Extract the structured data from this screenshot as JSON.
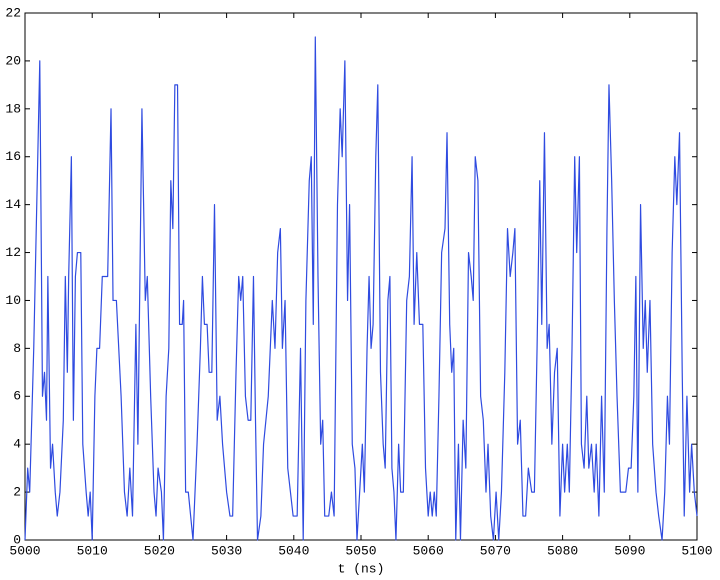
{
  "chart_data": {
    "type": "line",
    "x_label": "t (ns)",
    "x": [
      5000,
      5000.4,
      5000.7,
      5001.3,
      5002.2,
      5002.6,
      5002.9,
      5003.2,
      5003.4,
      5003.8,
      5004.1,
      5004.5,
      5004.8,
      5005.2,
      5005.7,
      5006,
      5006.3,
      5006.5,
      5006.9,
      5007.2,
      5007.5,
      5007.8,
      5008.3,
      5008.6,
      5009.1,
      5009.4,
      5009.7,
      5010,
      5010.4,
      5010.7,
      5011.1,
      5011.5,
      5012.3,
      5012.8,
      5013.1,
      5013.6,
      5014.3,
      5014.8,
      5015.2,
      5015.6,
      5016,
      5016.5,
      5016.8,
      5017.4,
      5017.9,
      5018.2,
      5018.7,
      5019.2,
      5019.5,
      5019.8,
      5020.3,
      5020.6,
      5021,
      5021.4,
      5021.7,
      5022,
      5022.3,
      5022.7,
      5023,
      5023.4,
      5023.6,
      5023.9,
      5024.3,
      5025,
      5025.6,
      5026.1,
      5026.4,
      5026.7,
      5027.1,
      5027.4,
      5027.8,
      5028.2,
      5028.6,
      5029,
      5029.4,
      5030,
      5030.5,
      5030.9,
      5031.4,
      5031.8,
      5032.1,
      5032.4,
      5032.8,
      5033.2,
      5033.6,
      5034,
      5034.3,
      5034.6,
      5035.1,
      5035.5,
      5036.2,
      5036.8,
      5037.2,
      5037.6,
      5038,
      5038.3,
      5038.7,
      5039.1,
      5039.5,
      5039.9,
      5040.5,
      5041,
      5041.4,
      5041.8,
      5042.3,
      5042.6,
      5042.9,
      5043.2,
      5043.6,
      5044,
      5044.3,
      5044.6,
      5045.2,
      5045.6,
      5046,
      5046.5,
      5046.9,
      5047.2,
      5047.6,
      5048,
      5048.3,
      5048.7,
      5049.1,
      5049.4,
      5049.8,
      5050.2,
      5050.5,
      5050.9,
      5051.2,
      5051.5,
      5051.8,
      5052.2,
      5052.5,
      5052.9,
      5053.3,
      5053.6,
      5054,
      5054.3,
      5054.6,
      5054.9,
      5055.2,
      5055.6,
      5055.9,
      5056.3,
      5056.8,
      5057.2,
      5057.6,
      5057.9,
      5058.3,
      5058.7,
      5059.2,
      5059.6,
      5060,
      5060.3,
      5060.6,
      5060.9,
      5061.2,
      5061.6,
      5062,
      5062.5,
      5062.8,
      5063.2,
      5063.5,
      5063.8,
      5064.1,
      5064.5,
      5064.8,
      5065.2,
      5065.6,
      5066,
      5066.4,
      5066.7,
      5067,
      5067.4,
      5067.8,
      5068.2,
      5068.6,
      5068.9,
      5069.3,
      5069.7,
      5070.1,
      5070.5,
      5070.9,
      5071.4,
      5071.8,
      5072.2,
      5072.6,
      5072.9,
      5073.3,
      5073.7,
      5074.1,
      5074.5,
      5074.9,
      5075.4,
      5075.8,
      5076.2,
      5076.6,
      5076.9,
      5077.3,
      5077.7,
      5078,
      5078.4,
      5078.8,
      5079.2,
      5079.6,
      5080,
      5080.3,
      5080.7,
      5081,
      5081.4,
      5081.8,
      5082.1,
      5082.5,
      5082.8,
      5083.2,
      5083.6,
      5083.9,
      5084.3,
      5084.7,
      5085,
      5085.4,
      5085.8,
      5086.2,
      5086.6,
      5086.9,
      5087.3,
      5087.7,
      5088.1,
      5088.6,
      5089.4,
      5089.8,
      5090.2,
      5090.6,
      5090.9,
      5091.2,
      5091.6,
      5092,
      5092.3,
      5092.6,
      5093,
      5093.4,
      5093.9,
      5094.3,
      5094.8,
      5095.2,
      5095.6,
      5095.9,
      5096.3,
      5096.7,
      5097,
      5097.4,
      5097.8,
      5098.1,
      5098.5,
      5098.9,
      5099.2,
      5099.6,
      5100
    ],
    "values": [
      0,
      3,
      2,
      8,
      20,
      6,
      7,
      5,
      11,
      3,
      4,
      2,
      1,
      2,
      5,
      11,
      7,
      11,
      16,
      5,
      11,
      12,
      12,
      4,
      2,
      1,
      2,
      0,
      6,
      8,
      8,
      11,
      11,
      18,
      10,
      10,
      6,
      2,
      1,
      3,
      1,
      9,
      4,
      18,
      10,
      11,
      6,
      2,
      1,
      3,
      2,
      0,
      6,
      8,
      15,
      13,
      19,
      19,
      9,
      9,
      10,
      2,
      2,
      0,
      4,
      8,
      11,
      9,
      9,
      7,
      7,
      14,
      5,
      6,
      4,
      2,
      1,
      1,
      7,
      11,
      10,
      11,
      6,
      5,
      5,
      11,
      5,
      0,
      1,
      4,
      6,
      10,
      8,
      12,
      13,
      8,
      10,
      3,
      2,
      1,
      1,
      8,
      0,
      10,
      15,
      16,
      9,
      21,
      11,
      4,
      5,
      1,
      1,
      2,
      1,
      14,
      18,
      16,
      20,
      10,
      14,
      4,
      3,
      0,
      2,
      4,
      2,
      8,
      11,
      8,
      9,
      16,
      19,
      7,
      4,
      3,
      10,
      11,
      3,
      2,
      0,
      4,
      2,
      2,
      10,
      11,
      16,
      9,
      12,
      9,
      9,
      3,
      1,
      2,
      1,
      2,
      1,
      6,
      12,
      13,
      17,
      9,
      7,
      8,
      0,
      4,
      0,
      5,
      3,
      12,
      11,
      10,
      16,
      15,
      6,
      5,
      2,
      4,
      1,
      0,
      2,
      0,
      2,
      7,
      13,
      11,
      12,
      13,
      4,
      5,
      1,
      1,
      3,
      2,
      2,
      8,
      15,
      9,
      17,
      8,
      9,
      4,
      7,
      8,
      1,
      4,
      2,
      4,
      2,
      8,
      16,
      12,
      16,
      4,
      3,
      6,
      3,
      4,
      2,
      4,
      1,
      6,
      2,
      13,
      19,
      15,
      10,
      6,
      2,
      2,
      3,
      3,
      6,
      11,
      2,
      14,
      8,
      10,
      7,
      10,
      4,
      2,
      1,
      0,
      2,
      6,
      4,
      12,
      16,
      14,
      17,
      7,
      1,
      6,
      2,
      4,
      2,
      1
    ],
    "color": "#2f4be0",
    "xlim": [
      5000,
      5100
    ],
    "xticks": [
      5000,
      5010,
      5020,
      5030,
      5040,
      5050,
      5060,
      5070,
      5080,
      5090,
      5100
    ],
    "ylim": [
      0,
      22
    ],
    "yticks": [
      0,
      2,
      4,
      6,
      8,
      10,
      12,
      14,
      16,
      18,
      20,
      22
    ]
  }
}
